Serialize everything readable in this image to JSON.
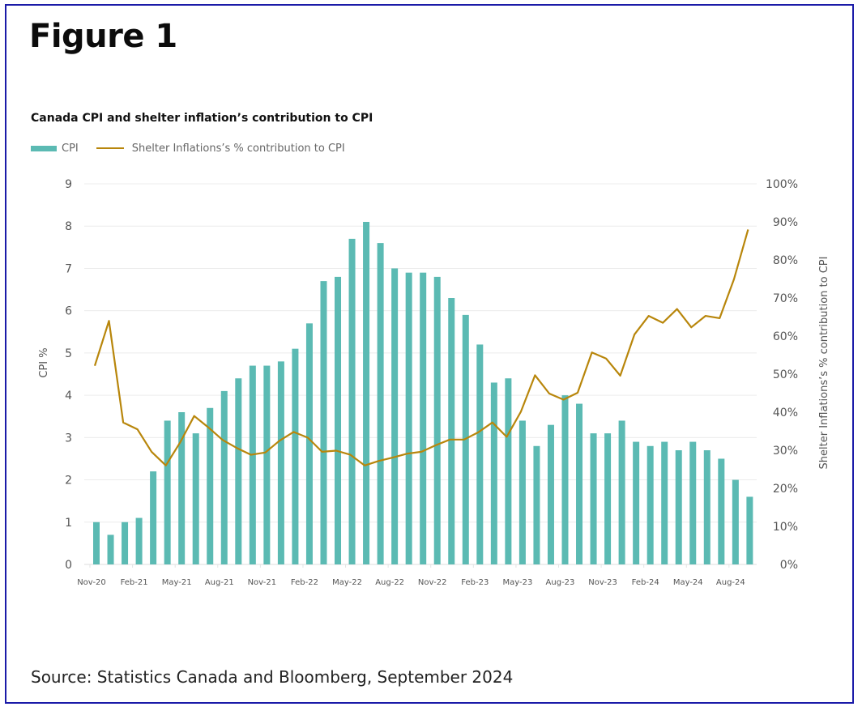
{
  "figure": {
    "title": "Figure 1",
    "source": "Source: Statistics Canada and Bloomberg, September 2024"
  },
  "chart_data": {
    "type": "bar",
    "title": "Canada CPI and shelter inflation’s contribution to CPI",
    "legend": {
      "position": "top-left",
      "entries": [
        {
          "name": "CPI",
          "kind": "bar",
          "color": "#5bbab3"
        },
        {
          "name": "Shelter Inflations’s % contribution to CPI",
          "kind": "line",
          "color": "#b8860b"
        }
      ]
    },
    "xlabel": "",
    "ylabel": "CPI %",
    "y2label": "Shelter Inflations’s % contribution to CPI",
    "ylim": [
      0,
      9
    ],
    "y_ticks": [
      "0",
      "1",
      "2",
      "3",
      "4",
      "5",
      "6",
      "7",
      "8",
      "9"
    ],
    "y2lim": [
      0,
      100
    ],
    "y2_ticks": [
      "0%",
      "10%",
      "20%",
      "30%",
      "40%",
      "50%",
      "60%",
      "70%",
      "80%",
      "90%",
      "100%"
    ],
    "grid": true,
    "categories": [
      "Nov-20",
      "Dec-20",
      "Jan-21",
      "Feb-21",
      "Mar-21",
      "Apr-21",
      "May-21",
      "Jun-21",
      "Jul-21",
      "Aug-21",
      "Sep-21",
      "Oct-21",
      "Nov-21",
      "Dec-21",
      "Jan-22",
      "Feb-22",
      "Mar-22",
      "Apr-22",
      "May-22",
      "Jun-22",
      "Jul-22",
      "Aug-22",
      "Sep-22",
      "Oct-22",
      "Nov-22",
      "Dec-22",
      "Jan-23",
      "Feb-23",
      "Mar-23",
      "Apr-23",
      "May-23",
      "Jun-23",
      "Jul-23",
      "Aug-23",
      "Sep-23",
      "Oct-23",
      "Nov-23",
      "Dec-23",
      "Jan-24",
      "Feb-24",
      "Mar-24",
      "Apr-24",
      "May-24",
      "Jun-24",
      "Jul-24",
      "Aug-24",
      "Sep-24"
    ],
    "x_tick_labels": [
      "Nov-20",
      "Feb-21",
      "May-21",
      "Aug-21",
      "Nov-21",
      "Feb-22",
      "May-22",
      "Aug-22",
      "Nov-22",
      "Feb-23",
      "May-23",
      "Aug-23",
      "Nov-23",
      "Feb-24",
      "May-24",
      "Aug-24"
    ],
    "series": [
      {
        "name": "CPI",
        "type": "bar",
        "axis": "left",
        "color": "#5bbab3",
        "values": [
          1.0,
          0.7,
          1.0,
          1.1,
          2.2,
          3.4,
          3.6,
          3.1,
          3.7,
          4.1,
          4.4,
          4.7,
          4.7,
          4.8,
          5.1,
          5.7,
          6.7,
          6.8,
          7.7,
          8.1,
          7.6,
          7.0,
          6.9,
          6.9,
          6.8,
          6.3,
          5.9,
          5.2,
          4.3,
          4.4,
          3.4,
          2.8,
          3.3,
          4.0,
          3.8,
          3.1,
          3.1,
          3.4,
          2.9,
          2.8,
          2.9,
          2.7,
          2.9,
          2.7,
          2.5,
          2.0,
          1.6
        ]
      },
      {
        "name": "Shelter Inflations’s % contribution to CPI",
        "type": "line",
        "axis": "right",
        "color": "#b8860b",
        "values": [
          52.2,
          64,
          37.3,
          35.5,
          29.6,
          26,
          32,
          39,
          36,
          32.7,
          30.6,
          28.8,
          29.4,
          32.5,
          34.8,
          33.3,
          29.6,
          29.9,
          28.8,
          26,
          27.2,
          28.1,
          29.1,
          29.6,
          31.3,
          32.8,
          32.8,
          34.7,
          37.3,
          33.5,
          40.1,
          49.7,
          44.9,
          43.3,
          45.1,
          55.7,
          54.1,
          49.6,
          60.4,
          65.3,
          63.5,
          67.1,
          62.3,
          65.3,
          64.7,
          74.9,
          88
        ]
      }
    ]
  }
}
